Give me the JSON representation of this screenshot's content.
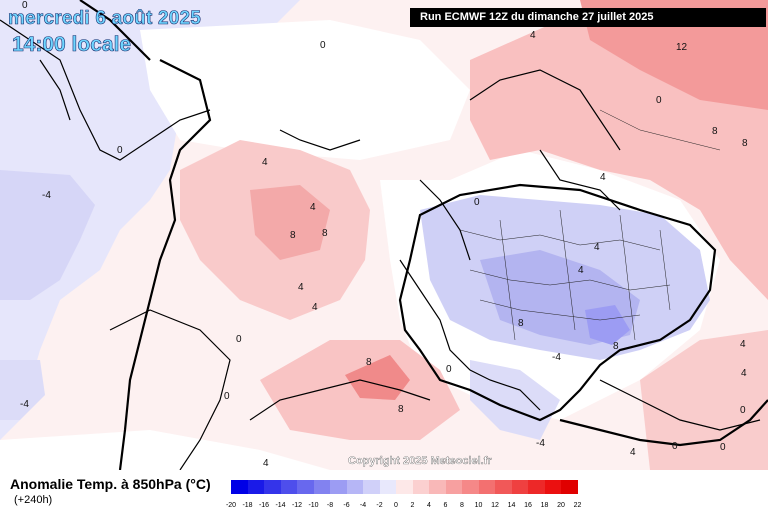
{
  "header": {
    "date": "mercredi 6 août 2025",
    "time": "14:00 locale",
    "run": "Run ECMWF 12Z du dimanche 27 juillet 2025"
  },
  "copyright": "Copyright 2025 Meteociel.fr",
  "legend": {
    "title": "Anomalie Temp. à 850hPa (°C)",
    "subtitle": "(+240h)",
    "ticks": [
      "-20",
      "-18",
      "-16",
      "-14",
      "-12",
      "-10",
      "-8",
      "-6",
      "-4",
      "-2",
      "0",
      "2",
      "4",
      "6",
      "8",
      "10",
      "12",
      "14",
      "16",
      "18",
      "20",
      "22"
    ],
    "colors": [
      "#0000e6",
      "#1a1ae8",
      "#3434ea",
      "#4e4eec",
      "#6868ee",
      "#8282f0",
      "#9c9cf3",
      "#b6b6f6",
      "#d0d0f9",
      "#e8e8fc",
      "#fde8e8",
      "#fbd0d0",
      "#f9b8b8",
      "#f7a0a0",
      "#f58888",
      "#f37070",
      "#f15858",
      "#ef4040",
      "#ed2828",
      "#eb1010",
      "#e00000"
    ]
  },
  "map": {
    "region": "Europe / North Atlantic",
    "contour_labels": [
      "0",
      "4",
      "-4",
      "4",
      "8",
      "8",
      "4",
      "4",
      "0",
      "0",
      "0",
      "4",
      "8",
      "8",
      "8",
      "0",
      "0",
      "-4",
      "12",
      "0",
      "8",
      "8",
      "4",
      "4",
      "4",
      "8",
      "4",
      "0",
      "0",
      "4",
      "-4",
      "-4",
      "0",
      "0",
      "4",
      "4"
    ]
  }
}
